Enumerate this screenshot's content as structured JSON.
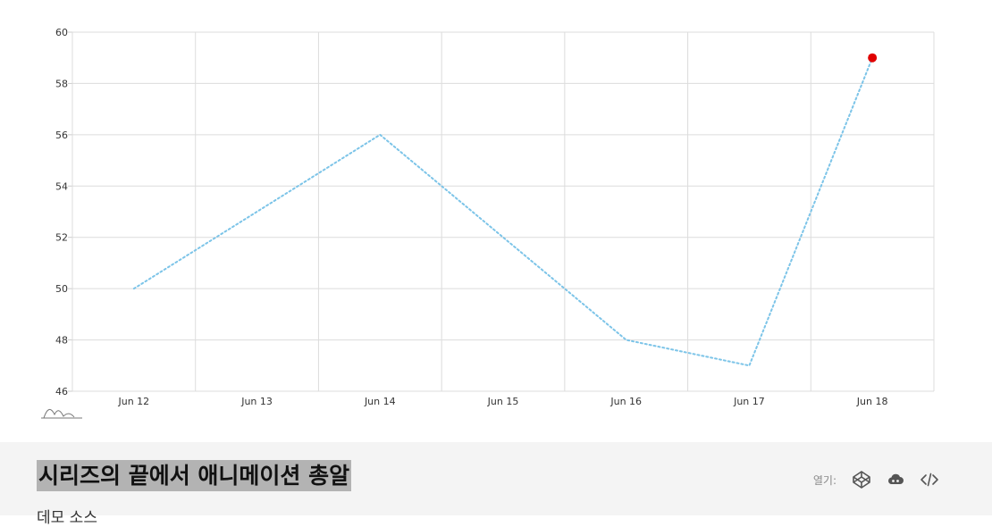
{
  "chart_data": {
    "type": "line",
    "x": [
      "Jun 12",
      "Jun 13",
      "Jun 14",
      "Jun 15",
      "Jun 16",
      "Jun 17",
      "Jun 18"
    ],
    "series": [
      {
        "values": [
          50,
          53,
          56,
          52,
          48,
          47,
          59
        ]
      }
    ],
    "yticks": [
      "60",
      "58",
      "56",
      "54",
      "52",
      "50",
      "48",
      "46"
    ],
    "ylim": [
      46,
      60
    ],
    "grid": true,
    "line_style": "dotted",
    "line_color": "#7cc4e8",
    "end_marker_color": "#e00000"
  },
  "footer": {
    "title": "시리즈의 끝에서 애니메이션 총알",
    "source_link": "데모 소스",
    "open_label": "열기:",
    "background": "#f4f4f4",
    "title_highlight": "#b3b3b3"
  },
  "icons": {
    "codepen": "codepen-icon",
    "cloud": "cloud-icon",
    "code": "code-icon",
    "minimap": "minimap-icon"
  }
}
